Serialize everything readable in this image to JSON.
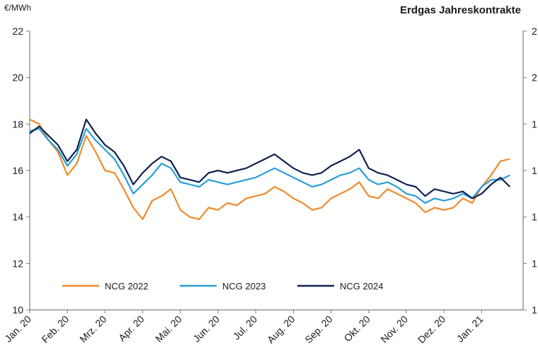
{
  "chart_data": {
    "type": "line",
    "title": "Erdgas Jahreskontrakte",
    "ylabel": "€/MWh",
    "ylim": [
      10,
      22
    ],
    "yticks": [
      10,
      12,
      14,
      16,
      18,
      20,
      22
    ],
    "yticks_right": [
      "1",
      "1",
      "1",
      "1",
      "1",
      "2",
      "2"
    ],
    "grid": false,
    "legend": "bottom-left",
    "x_ticks": [
      "Jan. 20",
      "Feb. 20",
      "Mrz. 20",
      "Apr. 20",
      "Mai. 20",
      "Jun. 20",
      "Jul. 20",
      "Aug. 20",
      "Sep. 20",
      "Okt. 20",
      "Nov. 20",
      "Dez. 20",
      "Jan. 21"
    ],
    "x": [
      0,
      0.25,
      0.5,
      0.75,
      1,
      1.25,
      1.5,
      1.75,
      2,
      2.25,
      2.5,
      2.75,
      3,
      3.25,
      3.5,
      3.75,
      4,
      4.25,
      4.5,
      4.75,
      5,
      5.25,
      5.5,
      5.75,
      6,
      6.25,
      6.5,
      6.75,
      7,
      7.25,
      7.5,
      7.75,
      8,
      8.25,
      8.5,
      8.75,
      9,
      9.25,
      9.5,
      9.75,
      10,
      10.25,
      10.5,
      10.75,
      11,
      11.25,
      11.5,
      11.75,
      12,
      12.25,
      12.5,
      12.75
    ],
    "series": [
      {
        "name": "NCG 2022",
        "color": "#f08a2c",
        "values": [
          18.2,
          18.0,
          17.3,
          16.8,
          15.8,
          16.3,
          17.5,
          16.8,
          16.0,
          15.9,
          15.2,
          14.4,
          13.9,
          14.7,
          14.9,
          15.2,
          14.3,
          14.0,
          13.9,
          14.4,
          14.3,
          14.6,
          14.5,
          14.8,
          14.9,
          15.0,
          15.3,
          15.1,
          14.8,
          14.6,
          14.3,
          14.4,
          14.8,
          15.0,
          15.2,
          15.5,
          14.9,
          14.8,
          15.2,
          15.0,
          14.8,
          14.6,
          14.2,
          14.4,
          14.3,
          14.4,
          14.8,
          14.6,
          15.3,
          15.8,
          16.4,
          16.5
        ]
      },
      {
        "name": "NCG 2023",
        "color": "#2a9dd8",
        "values": [
          17.7,
          17.8,
          17.3,
          16.9,
          16.2,
          16.7,
          17.8,
          17.3,
          16.9,
          16.5,
          15.8,
          15.0,
          15.4,
          15.8,
          16.3,
          16.1,
          15.5,
          15.4,
          15.3,
          15.6,
          15.5,
          15.4,
          15.5,
          15.6,
          15.7,
          15.9,
          16.1,
          15.9,
          15.7,
          15.5,
          15.3,
          15.4,
          15.6,
          15.8,
          15.9,
          16.1,
          15.6,
          15.4,
          15.5,
          15.3,
          15.0,
          14.9,
          14.6,
          14.8,
          14.7,
          14.8,
          15.0,
          14.8,
          15.3,
          15.6,
          15.6,
          15.8
        ]
      },
      {
        "name": "NCG 2024",
        "color": "#0d2350",
        "values": [
          17.6,
          17.9,
          17.5,
          17.1,
          16.4,
          16.9,
          18.2,
          17.6,
          17.1,
          16.8,
          16.2,
          15.4,
          15.9,
          16.3,
          16.6,
          16.4,
          15.7,
          15.6,
          15.5,
          15.9,
          16.0,
          15.9,
          16.0,
          16.1,
          16.3,
          16.5,
          16.7,
          16.4,
          16.1,
          15.9,
          15.8,
          15.9,
          16.2,
          16.4,
          16.6,
          16.9,
          16.1,
          15.9,
          15.8,
          15.6,
          15.4,
          15.3,
          14.9,
          15.2,
          15.1,
          15.0,
          15.1,
          14.8,
          15.0,
          15.4,
          15.7,
          15.3
        ]
      }
    ]
  }
}
